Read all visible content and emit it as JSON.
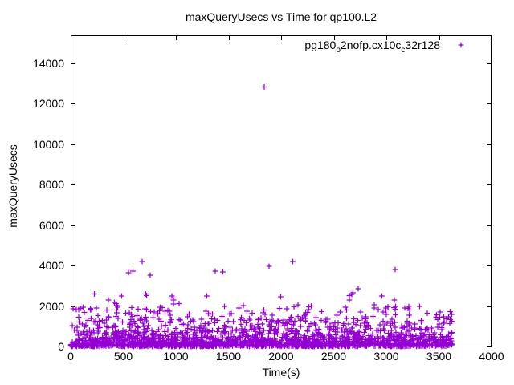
{
  "chart_data": {
    "type": "scatter",
    "title": "maxQueryUsecs vs Time for qp100.L2",
    "xlabel": "Time(s)",
    "ylabel": "maxQueryUsecs",
    "xlim": [
      0,
      4000
    ],
    "ylim": [
      0,
      15390
    ],
    "x_ticks": [
      0,
      500,
      1000,
      1500,
      2000,
      2500,
      3000,
      3500,
      4000
    ],
    "y_ticks": [
      0,
      2000,
      4000,
      6000,
      8000,
      10000,
      12000,
      14000
    ],
    "grid": false,
    "axis_color": "#000000",
    "background_color": "#ffffff",
    "legend_position": "top-right-inside",
    "series": [
      {
        "name": "pg180_o2nofp.cx10c_c32r128",
        "name_parts": [
          "pg180",
          "o",
          "2nofp.cx10c",
          "c",
          "32r128"
        ],
        "marker": "plus",
        "color": "#9400D3",
        "x_data_range": [
          0,
          3626
        ],
        "outliers": [
          [
            550,
            3650
          ],
          [
            590,
            3730
          ],
          [
            680,
            4200
          ],
          [
            755,
            3530
          ],
          [
            1375,
            3730
          ],
          [
            1445,
            3690
          ],
          [
            1840,
            12840
          ],
          [
            1885,
            3960
          ],
          [
            2110,
            4200
          ],
          [
            3085,
            3800
          ]
        ],
        "density_bands": [
          {
            "y_range": [
              0,
              150
            ],
            "count": 900
          },
          {
            "y_range": [
              150,
              450
            ],
            "count": 550
          },
          {
            "y_range": [
              450,
              800
            ],
            "count": 280
          },
          {
            "y_range": [
              800,
              1400
            ],
            "count": 240
          },
          {
            "y_range": [
              1400,
              2000
            ],
            "count": 110
          },
          {
            "y_range": [
              2000,
              2600
            ],
            "count": 22
          },
          {
            "y_range": [
              2600,
              2900
            ],
            "count": 3
          }
        ],
        "seed": 1337
      }
    ]
  }
}
